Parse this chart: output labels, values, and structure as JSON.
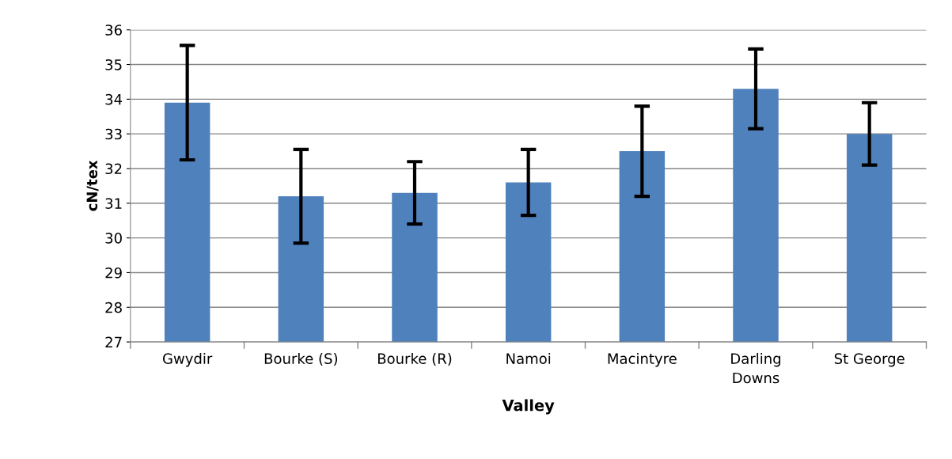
{
  "chart_data": {
    "type": "bar",
    "xlabel": "Valley",
    "ylabel": "cN/tex",
    "categories": [
      "Gwydir",
      "Bourke (S)",
      "Bourke (R)",
      "Namoi",
      "Macintyre",
      "Darling\nDowns",
      "St George"
    ],
    "values": [
      33.9,
      31.2,
      31.3,
      31.6,
      32.5,
      34.3,
      33.0
    ],
    "errors": [
      1.65,
      1.35,
      0.9,
      0.95,
      1.3,
      1.15,
      0.9
    ],
    "color": "#4f81bd",
    "ylim": [
      27,
      36
    ],
    "yticks": [
      27,
      28,
      29,
      30,
      31,
      32,
      33,
      34,
      35,
      36
    ],
    "grid": "y",
    "legend": false
  }
}
